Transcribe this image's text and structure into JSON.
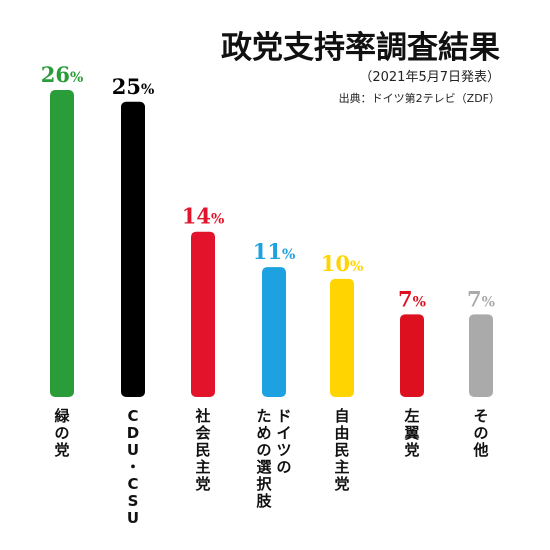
{
  "header": {
    "title": "政党支持率調査結果",
    "subtitle": "（2021年5月7日発表）",
    "source": "出典：ドイツ第2テレビ（ZDF）"
  },
  "chart_data": {
    "type": "bar",
    "title": "政党支持率調査結果",
    "subtitle": "（2021年5月7日発表）",
    "categories": [
      "緑の党",
      "CDU・CSU",
      "社会民主党",
      "ドイツのための選択肢",
      "自由民主党",
      "左翼党",
      "その他"
    ],
    "values": [
      26,
      25,
      14,
      11,
      10,
      7,
      7
    ],
    "value_labels": [
      "26%",
      "25%",
      "14%",
      "11%",
      "10%",
      "7%",
      "7%"
    ],
    "colors": [
      "#2a9d3a",
      "#000000",
      "#e2132b",
      "#1ea1e1",
      "#ffd400",
      "#dd1020",
      "#aaaaaa"
    ],
    "ylim": [
      0,
      26
    ],
    "grid": false,
    "legend": "none"
  }
}
